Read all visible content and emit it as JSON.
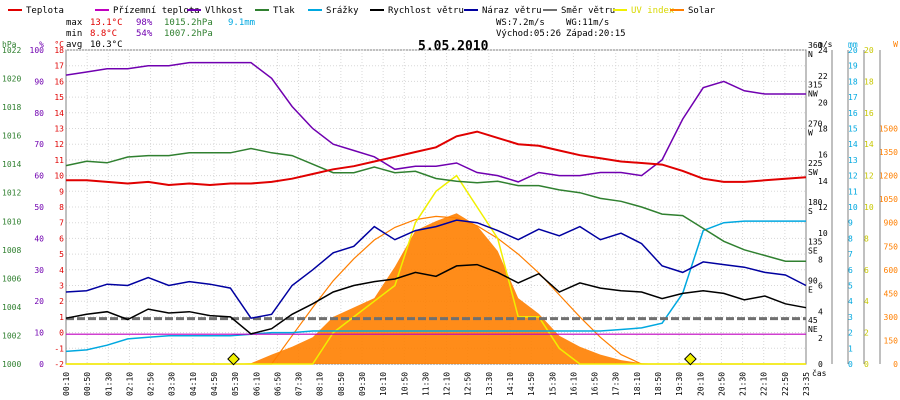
{
  "chart_data": {
    "type": "line",
    "title": "5.05.2010",
    "xlabel": "čas",
    "colors": {
      "temperature": "#e00000",
      "feels_like": "#c000c0",
      "humidity": "#7000b0",
      "pressure": "#308030",
      "rain": "#00a8e0",
      "wind_speed": "#000000",
      "gust": "#0000a0",
      "wind_dir": "#707070",
      "uv": "#f0f000",
      "solar": "#ff7f00",
      "grid": "#d8d8d8"
    },
    "legend": [
      {
        "key": "temperature",
        "label": "Teplota"
      },
      {
        "key": "feels_like",
        "label": "Přízemní teplota"
      },
      {
        "key": "humidity",
        "label": "Vlhkost"
      },
      {
        "key": "pressure",
        "label": "Tlak"
      },
      {
        "key": "rain",
        "label": "Srážky"
      },
      {
        "key": "wind_speed",
        "label": "Rychlost větru"
      },
      {
        "key": "gust",
        "label": "Náraz větru"
      },
      {
        "key": "wind_dir",
        "label": "Směr větru"
      },
      {
        "key": "uv",
        "label": "UV index"
      },
      {
        "key": "solar",
        "label": "Solar"
      }
    ],
    "stats": {
      "max_label": "max",
      "max_temp": "13.1°C",
      "max_hum": "98%",
      "max_press": "1015.2hPa",
      "rain_total": "9.1mm",
      "min_label": "min",
      "min_temp": "8.8°C",
      "min_hum": "54%",
      "min_press": "1007.2hPa",
      "avg_label": "avg",
      "avg_temp": "10.3°C",
      "ws": "WS:7.2m/s",
      "wg": "WG:11m/s",
      "sunrise": "Východ:05:26",
      "sunset": "Západ:20:15"
    },
    "axes": {
      "hpa": {
        "unit": "hPa",
        "range": [
          1000,
          1022
        ],
        "ticks": [
          1000,
          1002,
          1004,
          1006,
          1008,
          1010,
          1012,
          1014,
          1016,
          1018,
          1020,
          1022
        ]
      },
      "pct": {
        "unit": "%",
        "range": [
          0,
          100
        ],
        "ticks": [
          0,
          10,
          20,
          30,
          40,
          50,
          60,
          70,
          80,
          90,
          100
        ]
      },
      "temp": {
        "unit": "°C",
        "range": [
          -2,
          18
        ],
        "ticks": [
          -2,
          -1,
          0,
          1,
          2,
          3,
          4,
          5,
          6,
          7,
          8,
          9,
          10,
          11,
          12,
          13,
          14,
          15,
          16,
          17,
          18
        ]
      },
      "ms": {
        "unit": "m/s",
        "range": [
          0,
          24
        ],
        "ticks": [
          0,
          2,
          4,
          6,
          8,
          10,
          12,
          14,
          16,
          18,
          20,
          22,
          24
        ]
      },
      "deg": {
        "range": [
          0,
          360
        ],
        "ticks": [
          45,
          90,
          135,
          180,
          225,
          270,
          315,
          360
        ],
        "labels": {
          "45": "NE",
          "90": "E",
          "135": "SE",
          "180": "S",
          "225": "SW",
          "270": "W",
          "315": "NW",
          "360": "N"
        }
      },
      "mm": {
        "unit": "mm",
        "range": [
          0,
          20
        ],
        "ticks": [
          0,
          1,
          2,
          3,
          4,
          5,
          6,
          7,
          8,
          9,
          10,
          11,
          12,
          13,
          14,
          15,
          16,
          17,
          18,
          19,
          20
        ]
      },
      "uv": {
        "range": [
          0,
          20
        ],
        "ticks": [
          0,
          2,
          4,
          6,
          8,
          10,
          12,
          14,
          16,
          18,
          20
        ]
      },
      "w": {
        "unit": "W",
        "range": [
          0,
          2000
        ],
        "ticks": [
          0,
          150,
          300,
          450,
          600,
          750,
          900,
          1050,
          1200,
          1350,
          1500
        ]
      }
    },
    "x_labels": [
      "00:10",
      "00:50",
      "01:30",
      "02:10",
      "02:50",
      "03:30",
      "04:10",
      "04:50",
      "05:30",
      "06:10",
      "06:50",
      "07:30",
      "08:10",
      "08:50",
      "09:30",
      "10:10",
      "10:50",
      "11:30",
      "12:10",
      "12:50",
      "13:30",
      "14:10",
      "14:50",
      "15:30",
      "16:10",
      "16:50",
      "17:30",
      "18:10",
      "18:50",
      "19:30",
      "20:10",
      "20:50",
      "21:30",
      "22:10",
      "22:50",
      "23:35"
    ],
    "x_hours": [
      0,
      2,
      4,
      6,
      8,
      10,
      12,
      14,
      16,
      18,
      20,
      22,
      24
    ],
    "series": {
      "temperature_c": [
        9.7,
        9.7,
        9.6,
        9.5,
        9.6,
        9.4,
        9.5,
        9.4,
        9.5,
        9.5,
        9.6,
        9.8,
        10.1,
        10.4,
        10.6,
        10.9,
        11.2,
        11.5,
        11.8,
        12.5,
        12.8,
        12.4,
        12.0,
        11.9,
        11.6,
        11.3,
        11.1,
        10.9,
        10.8,
        10.7,
        10.3,
        9.8,
        9.6,
        9.6,
        9.7,
        9.8,
        9.9
      ],
      "humidity_pct": [
        92,
        93,
        94,
        94,
        95,
        95,
        96,
        96,
        96,
        96,
        91,
        82,
        75,
        70,
        68,
        66,
        62,
        63,
        63,
        64,
        61,
        60,
        58,
        61,
        60,
        60,
        61,
        61,
        60,
        65,
        78,
        88,
        90,
        87,
        86,
        86,
        86
      ],
      "pressure_hpa": [
        1013.9,
        1014.2,
        1014.1,
        1014.5,
        1014.6,
        1014.6,
        1014.8,
        1014.8,
        1014.8,
        1015.1,
        1014.8,
        1014.6,
        1014.0,
        1013.4,
        1013.4,
        1013.8,
        1013.4,
        1013.5,
        1013.0,
        1012.8,
        1012.7,
        1012.8,
        1012.5,
        1012.5,
        1012.2,
        1012.0,
        1011.6,
        1011.4,
        1011.0,
        1010.5,
        1010.4,
        1009.5,
        1008.6,
        1008.0,
        1007.6,
        1007.2,
        1007.2
      ],
      "feels_like_c": [
        -0.1,
        -0.1,
        -0.1,
        -0.1,
        -0.1,
        -0.1,
        -0.1,
        -0.1,
        -0.1,
        -0.1,
        -0.1,
        -0.1,
        -0.1,
        -0.1,
        -0.1,
        -0.1,
        -0.1,
        -0.1,
        -0.1,
        -0.1,
        -0.1,
        -0.1,
        -0.1,
        -0.1,
        -0.1,
        -0.1,
        -0.1,
        -0.1,
        -0.1,
        -0.1,
        -0.1,
        -0.1,
        -0.1,
        -0.1,
        -0.1,
        -0.1,
        -0.1
      ],
      "wind_speed_ms": [
        3.5,
        3.8,
        4.0,
        3.4,
        4.2,
        3.9,
        4.0,
        3.7,
        3.6,
        2.3,
        2.7,
        3.8,
        4.6,
        5.5,
        6.0,
        6.3,
        6.5,
        7.0,
        6.7,
        7.5,
        7.6,
        7.0,
        6.2,
        6.9,
        5.5,
        6.2,
        5.8,
        5.6,
        5.5,
        5.0,
        5.4,
        5.6,
        5.4,
        4.9,
        5.2,
        4.6,
        4.3
      ],
      "gust_ms": [
        5.5,
        5.6,
        6.1,
        6.0,
        6.6,
        6.0,
        6.3,
        6.1,
        5.8,
        3.5,
        3.8,
        6.0,
        7.2,
        8.5,
        9.0,
        10.5,
        9.5,
        10.2,
        10.5,
        11.0,
        10.8,
        10.2,
        9.5,
        10.3,
        9.8,
        10.5,
        9.5,
        10.0,
        9.2,
        7.5,
        7.0,
        7.8,
        7.6,
        7.4,
        7.0,
        6.8,
        6.0
      ],
      "wind_dir_deg": [
        52,
        52,
        52,
        52,
        52,
        52,
        52,
        52,
        52,
        52,
        52,
        52,
        52,
        52,
        52,
        52,
        52,
        52,
        52,
        52,
        52,
        52,
        52,
        52,
        52,
        52,
        52,
        52,
        52,
        52,
        52,
        52,
        52,
        52,
        52,
        52,
        52
      ],
      "rain_mm": [
        0.8,
        0.9,
        1.2,
        1.6,
        1.7,
        1.8,
        1.8,
        1.8,
        1.8,
        1.9,
        2.0,
        2.0,
        2.1,
        2.1,
        2.1,
        2.1,
        2.1,
        2.1,
        2.1,
        2.1,
        2.1,
        2.1,
        2.1,
        2.1,
        2.1,
        2.1,
        2.1,
        2.2,
        2.3,
        2.6,
        4.5,
        8.5,
        9.0,
        9.1,
        9.1,
        9.1,
        9.1
      ],
      "solar_w": [
        0,
        0,
        0,
        0,
        0,
        0,
        0,
        0,
        0,
        5,
        60,
        110,
        170,
        300,
        360,
        420,
        620,
        850,
        910,
        960,
        880,
        720,
        420,
        320,
        180,
        110,
        60,
        25,
        5,
        0,
        0,
        0,
        0,
        0,
        0,
        0,
        0
      ],
      "uv_index": [
        0,
        0,
        0,
        0,
        0,
        0,
        0,
        0,
        0,
        0,
        0,
        0,
        0,
        2,
        3,
        4,
        5,
        9,
        11,
        12,
        10,
        8,
        3,
        3,
        1,
        0,
        0,
        0,
        0,
        0,
        0,
        0,
        0,
        0,
        0,
        0,
        0
      ],
      "theoretical_solar_w": [
        0,
        0,
        0,
        0,
        0,
        0,
        0,
        0,
        0,
        0,
        0,
        180,
        360,
        530,
        670,
        790,
        870,
        920,
        940,
        930,
        880,
        800,
        700,
        580,
        440,
        300,
        170,
        60,
        0,
        0,
        0,
        0,
        0,
        0,
        0,
        0,
        0
      ]
    }
  }
}
